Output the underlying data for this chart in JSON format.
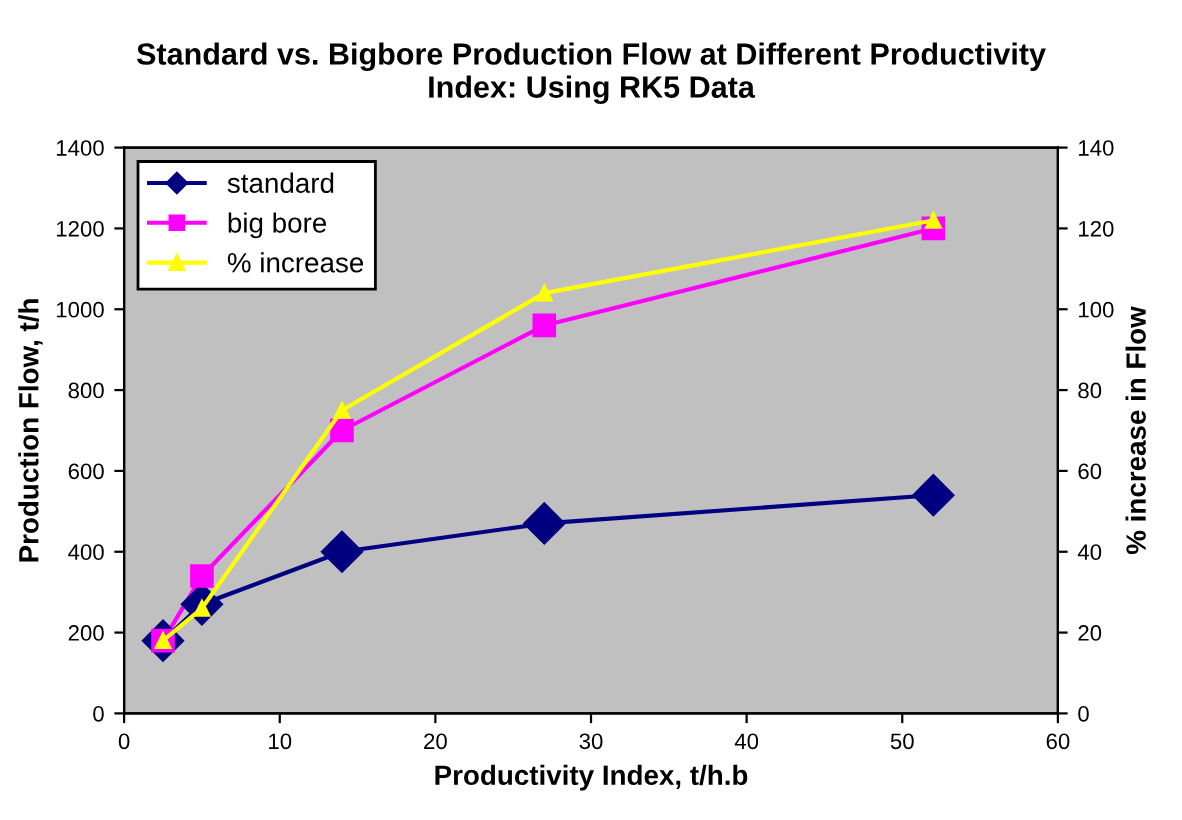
{
  "chart_data": {
    "type": "line",
    "title": "Standard vs. Bigbore Production Flow at Different Productivity\nIndex: Using RK5 Data",
    "xlabel": "Productivity Index, t/h.b",
    "ylabel": "Production Flow, t/h",
    "y2label": "% increase in Flow",
    "x": [
      2.5,
      5,
      14,
      27,
      52
    ],
    "series": [
      {
        "name": "standard",
        "color": "#000080",
        "marker": "diamond",
        "values": [
          180,
          270,
          400,
          470,
          540
        ]
      },
      {
        "name": "big bore",
        "color": "#ff00ff",
        "marker": "square",
        "values": [
          180,
          340,
          700,
          960,
          1200
        ]
      },
      {
        "name": "% increase",
        "color": "#ffff00",
        "marker": "triangle",
        "axis": "y2",
        "values": [
          18,
          26,
          75,
          104,
          122
        ]
      }
    ],
    "xlim": [
      0,
      60
    ],
    "xticks": [
      0,
      10,
      20,
      30,
      40,
      50,
      60
    ],
    "ylim": [
      0,
      1400
    ],
    "yticks": [
      0,
      200,
      400,
      600,
      800,
      1000,
      1200,
      1400
    ],
    "y2lim": [
      0,
      140
    ],
    "y2ticks": [
      0,
      20,
      40,
      60,
      80,
      100,
      120,
      140
    ],
    "legend": "top left",
    "grid": false
  }
}
